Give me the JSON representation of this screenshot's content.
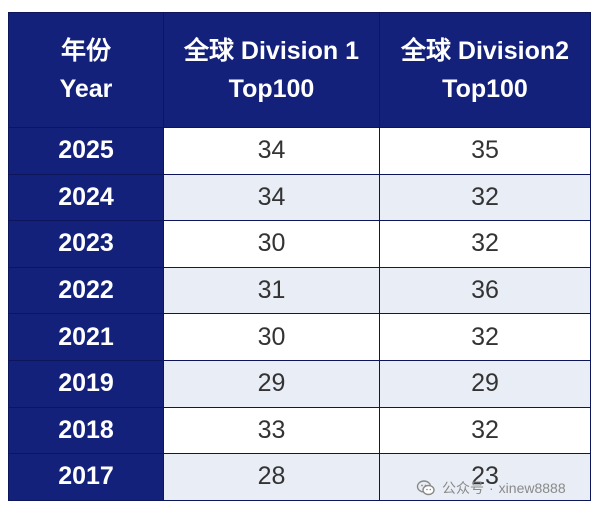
{
  "table": {
    "headers": {
      "year": [
        "年份",
        "Year"
      ],
      "division1": [
        "全球 Division 1",
        "Top100"
      ],
      "division2": [
        "全球 Division2",
        "Top100"
      ]
    },
    "rows": [
      {
        "year": "2025",
        "division1": "34",
        "division2": "35"
      },
      {
        "year": "2024",
        "division1": "34",
        "division2": "32"
      },
      {
        "year": "2023",
        "division1": "30",
        "division2": "32"
      },
      {
        "year": "2022",
        "division1": "31",
        "division2": "36"
      },
      {
        "year": "2021",
        "division1": "30",
        "division2": "32"
      },
      {
        "year": "2019",
        "division1": "29",
        "division2": "29"
      },
      {
        "year": "2018",
        "division1": "33",
        "division2": "32"
      },
      {
        "year": "2017",
        "division1": "28",
        "division2": "23"
      }
    ]
  },
  "watermark": {
    "platform": "公众号",
    "account": "xinew8888",
    "icon": "wechat-icon"
  },
  "colors": {
    "header_bg": "#13217a",
    "row_alt_bg": "#e9edf6"
  }
}
